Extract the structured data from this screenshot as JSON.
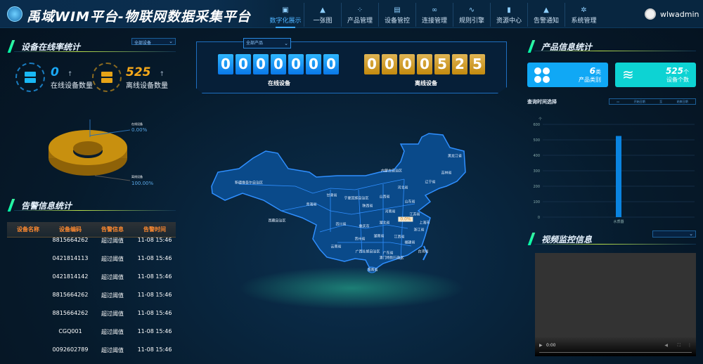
{
  "header": {
    "title": "禹域WIM平台-物联网数据采集平台",
    "user": "wlwadmin",
    "nav": [
      {
        "label": "数字化展示",
        "icon": "monitor-icon",
        "active": true
      },
      {
        "label": "一张图",
        "icon": "map-pin-icon"
      },
      {
        "label": "产品管理",
        "icon": "grid-icon"
      },
      {
        "label": "设备管控",
        "icon": "device-icon"
      },
      {
        "label": "连接管理",
        "icon": "link-icon"
      },
      {
        "label": "规则引擎",
        "icon": "pulse-icon"
      },
      {
        "label": "资源中心",
        "icon": "file-icon"
      },
      {
        "label": "告警通知",
        "icon": "warning-icon"
      },
      {
        "label": "系统管理",
        "icon": "gear-icon"
      }
    ]
  },
  "online": {
    "title": "设备在线率统计",
    "select": "全部设备",
    "online_count": "0",
    "online_label": "在线设备数量",
    "offline_count": "525",
    "offline_label": "离线设备数量",
    "pie": {
      "legend": [
        {
          "name": "在线设备",
          "pct": "0.00%",
          "value": 0
        },
        {
          "name": "离线设备",
          "pct": "100.00%",
          "value": 525
        }
      ],
      "colors": {
        "offline": "#c8900f"
      }
    }
  },
  "alarm": {
    "title": "告警信息统计",
    "headers": [
      "设备名称",
      "设备编码",
      "告警信息",
      "告警时间"
    ],
    "rows": [
      [
        "",
        "8815664262",
        "超过阈值",
        "11-08 15:46"
      ],
      [
        "",
        "0421814113",
        "超过阈值",
        "11-08 15:46"
      ],
      [
        "",
        "0421814142",
        "超过阈值",
        "11-08 15:46"
      ],
      [
        "",
        "8815664262",
        "超过阈值",
        "11-08 15:46"
      ],
      [
        "",
        "8815664262",
        "超过阈值",
        "11-08 15:46"
      ],
      [
        "",
        "CGQ001",
        "超过阈值",
        "11-08 15:46"
      ],
      [
        "",
        "0092602789",
        "超过阈值",
        "11-08 15:46"
      ]
    ]
  },
  "center": {
    "select": "全部产品",
    "online_digits": "0000000",
    "online_label": "在线设备",
    "offline_digits": "0000525",
    "offline_label": "离线设备",
    "map": {
      "highlight": "0.0%",
      "provinces": [
        "新疆维吾尔自治区",
        "西藏自治区",
        "青海省",
        "甘肃省",
        "内蒙古自治区",
        "黑龙江省",
        "吉林省",
        "辽宁省",
        "河北省",
        "山西省",
        "宁夏回族自治区",
        "陕西省",
        "山东省",
        "河南省",
        "江苏省",
        "上海市",
        "四川省",
        "湖北省",
        "重庆市",
        "浙江省",
        "贵州省",
        "湖南省",
        "江西省",
        "福建省",
        "云南省",
        "台湾省",
        "广西壮族自治区",
        "广东省",
        "澳门特别行政区",
        "海南省"
      ]
    }
  },
  "product": {
    "title": "产品信息统计",
    "categories_count": "6",
    "categories_unit": "类",
    "categories_label": "产品类别",
    "devices_count": "525",
    "devices_unit": "个",
    "devices_label": "设备个数",
    "query_label": "查询时间选择",
    "start_placeholder": "开始日期",
    "to": "至",
    "end_placeholder": "结束日期"
  },
  "chart_data": {
    "type": "bar",
    "categories": [
      "水质器"
    ],
    "values": [
      525
    ],
    "ylabel": "个",
    "ylim": [
      0,
      600
    ],
    "yticks": [
      0,
      100,
      200,
      300,
      400,
      500,
      600
    ],
    "grid": true,
    "color": "#0a84e0"
  },
  "video": {
    "title": "视频监控信息",
    "time": "0:00"
  }
}
